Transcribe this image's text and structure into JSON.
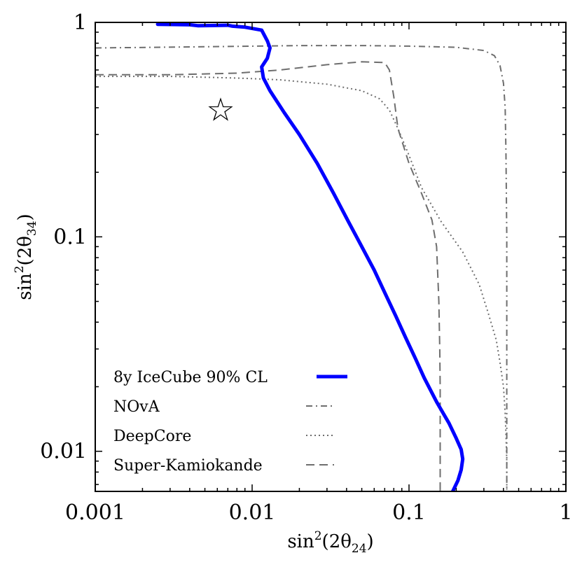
{
  "chart_data": {
    "type": "line",
    "xscale": "log",
    "yscale": "log",
    "xlim": [
      0.001,
      1
    ],
    "ylim": [
      0.0065,
      1
    ],
    "xlabel_base": "sin",
    "xlabel_sup": "2",
    "xlabel_arg": "(2θ",
    "xlabel_sub": "24",
    "xlabel_close": ")",
    "ylabel_base": "sin",
    "ylabel_sup": "2",
    "ylabel_arg": "(2θ",
    "ylabel_sub": "34",
    "ylabel_close": ")",
    "xticks": [
      {
        "value": 0.001,
        "label": "0.001"
      },
      {
        "value": 0.01,
        "label": "0.01"
      },
      {
        "value": 0.1,
        "label": "0.1"
      },
      {
        "value": 1,
        "label": "1"
      }
    ],
    "yticks": [
      {
        "value": 0.01,
        "label": "0.01"
      },
      {
        "value": 0.1,
        "label": "0.1"
      },
      {
        "value": 1,
        "label": "1"
      }
    ],
    "legend_position": "lower-left",
    "series": [
      {
        "name": "8y IceCube 90% CL",
        "color": "#0000ff",
        "style": "solid-thick",
        "x": [
          0.0025,
          0.004,
          0.0045,
          0.007,
          0.0075,
          0.009,
          0.0115,
          0.0125,
          0.013,
          0.0125,
          0.0115,
          0.0118,
          0.013,
          0.016,
          0.02,
          0.026,
          0.033,
          0.041,
          0.05,
          0.06,
          0.07,
          0.082,
          0.095,
          0.11,
          0.125,
          0.15,
          0.18,
          0.2,
          0.215,
          0.22,
          0.215,
          0.205,
          0.19
        ],
        "y": [
          0.98,
          0.975,
          0.965,
          0.97,
          0.96,
          0.95,
          0.92,
          0.82,
          0.76,
          0.68,
          0.62,
          0.55,
          0.48,
          0.38,
          0.3,
          0.22,
          0.16,
          0.118,
          0.09,
          0.07,
          0.055,
          0.043,
          0.034,
          0.027,
          0.022,
          0.017,
          0.0135,
          0.0115,
          0.0102,
          0.0092,
          0.0082,
          0.0073,
          0.0065
        ]
      },
      {
        "name": "NOvA",
        "color": "#6e6e6e",
        "style": "dashdot",
        "x": [
          0.001,
          0.005,
          0.02,
          0.05,
          0.1,
          0.2,
          0.3,
          0.35,
          0.38,
          0.4,
          0.41,
          0.415,
          0.42,
          0.42,
          0.42,
          0.42
        ],
        "y": [
          0.76,
          0.77,
          0.78,
          0.78,
          0.775,
          0.765,
          0.74,
          0.7,
          0.63,
          0.52,
          0.4,
          0.25,
          0.1,
          0.05,
          0.02,
          0.0065
        ]
      },
      {
        "name": "DeepCore",
        "color": "#6e6e6e",
        "style": "dotted",
        "x": [
          0.001,
          0.003,
          0.008,
          0.015,
          0.03,
          0.05,
          0.065,
          0.075,
          0.085,
          0.1,
          0.12,
          0.16,
          0.22,
          0.28,
          0.32,
          0.36,
          0.38,
          0.4,
          0.41,
          0.415,
          0.42,
          0.42,
          0.42
        ],
        "y": [
          0.56,
          0.56,
          0.55,
          0.54,
          0.515,
          0.48,
          0.44,
          0.39,
          0.32,
          0.24,
          0.17,
          0.118,
          0.085,
          0.06,
          0.044,
          0.033,
          0.026,
          0.02,
          0.015,
          0.012,
          0.009,
          0.0075,
          0.0065
        ]
      },
      {
        "name": "Super-Kamiokande",
        "color": "#6e6e6e",
        "style": "dashed",
        "x": [
          0.001,
          0.003,
          0.008,
          0.015,
          0.03,
          0.05,
          0.07,
          0.075,
          0.08,
          0.085,
          0.1,
          0.12,
          0.14,
          0.15,
          0.155,
          0.157,
          0.158,
          0.158,
          0.158,
          0.158
        ],
        "y": [
          0.57,
          0.57,
          0.58,
          0.6,
          0.635,
          0.655,
          0.65,
          0.6,
          0.45,
          0.32,
          0.22,
          0.16,
          0.12,
          0.09,
          0.05,
          0.03,
          0.02,
          0.01,
          0.008,
          0.0065
        ]
      }
    ],
    "marker": {
      "name": "star",
      "symbol": "☆",
      "x": 0.0063,
      "y": 0.39
    }
  }
}
